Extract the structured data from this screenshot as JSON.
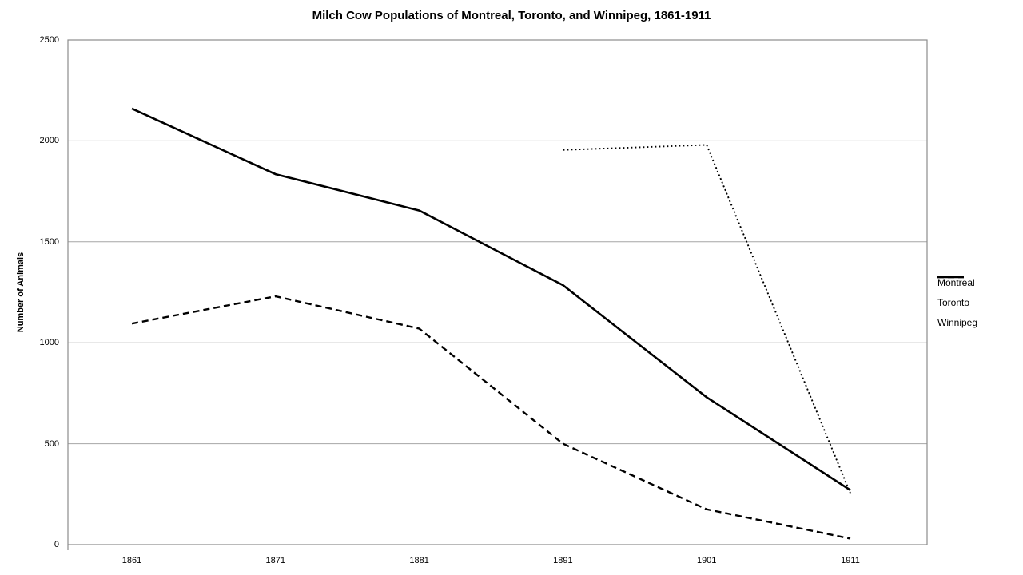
{
  "chart_data": {
    "type": "line",
    "title": "Milch Cow Populations of Montreal, Toronto, and Winnipeg, 1861-1911",
    "xlabel": "",
    "ylabel": "Number of Animals",
    "categories": [
      "1861",
      "1871",
      "1881",
      "1891",
      "1901",
      "1911"
    ],
    "y_ticks": [
      0,
      500,
      1000,
      1500,
      2000,
      2500
    ],
    "ylim": [
      0,
      2500
    ],
    "grid": "horizontal",
    "legend_position": "right",
    "series": [
      {
        "name": "Montreal",
        "style": "solid",
        "color": "#000000",
        "values": [
          2160,
          1835,
          1655,
          1285,
          730,
          270
        ]
      },
      {
        "name": "Toronto",
        "style": "dashed",
        "color": "#000000",
        "values": [
          1095,
          1230,
          1070,
          500,
          175,
          30
        ]
      },
      {
        "name": "Winnipeg",
        "style": "dotted",
        "color": "#000000",
        "values": [
          null,
          null,
          null,
          1955,
          1980,
          255
        ]
      }
    ]
  },
  "colors": {
    "background": "#ffffff",
    "gridline": "#a6a6a6",
    "axis_border": "#8c8c8c",
    "text": "#000000"
  }
}
